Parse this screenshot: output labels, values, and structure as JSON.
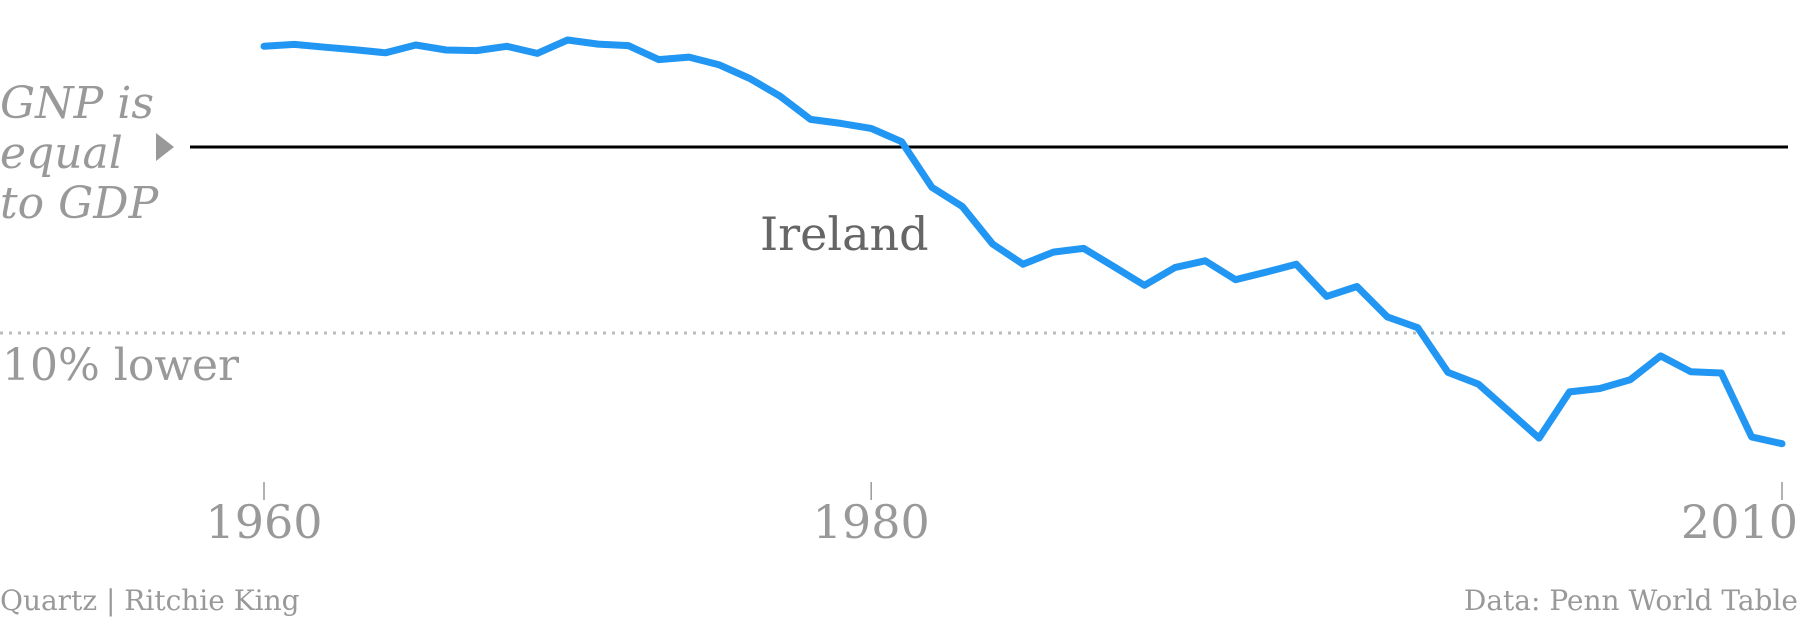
{
  "chart_data": {
    "type": "line",
    "title": "",
    "xlabel": "",
    "ylabel": "",
    "xlim": [
      1960,
      2010
    ],
    "ylim": [
      -0.14,
      0.04
    ],
    "x_ticks": [
      1960,
      1980,
      2010
    ],
    "x_tick_labels": [
      "1960",
      "1980",
      "2010"
    ],
    "series": [
      {
        "name": "Ireland",
        "color": "#2196f3",
        "x": [
          1960,
          1961,
          1962,
          1963,
          1964,
          1965,
          1966,
          1967,
          1968,
          1969,
          1970,
          1971,
          1972,
          1973,
          1974,
          1975,
          1976,
          1977,
          1978,
          1979,
          1980,
          1981,
          1982,
          1983,
          1984,
          1985,
          1986,
          1987,
          1988,
          1989,
          1990,
          1991,
          1992,
          1993,
          1994,
          1995,
          1996,
          1997,
          1998,
          1999,
          2000,
          2001,
          2002,
          2003,
          2004,
          2005,
          2006,
          2007,
          2008,
          2009,
          2010
        ],
        "y": [
          0.0325,
          0.0331,
          0.0322,
          0.0314,
          0.0304,
          0.0329,
          0.0313,
          0.0311,
          0.0325,
          0.0302,
          0.0345,
          0.0332,
          0.0327,
          0.0282,
          0.029,
          0.0265,
          0.0221,
          0.0164,
          0.0089,
          0.0076,
          0.006,
          0.0017,
          -0.013,
          -0.0192,
          -0.0313,
          -0.0378,
          -0.0339,
          -0.0327,
          -0.0386,
          -0.0446,
          -0.0389,
          -0.0367,
          -0.0428,
          -0.0404,
          -0.0378,
          -0.0482,
          -0.045,
          -0.0548,
          -0.0583,
          -0.0727,
          -0.0765,
          -0.0852,
          -0.0939,
          -0.079,
          -0.0779,
          -0.0751,
          -0.0674,
          -0.0725,
          -0.0729,
          -0.0935,
          -0.0957
        ]
      }
    ],
    "reference_lines": [
      {
        "y": 0,
        "label": "GNP is equal to GDP",
        "style": "solid",
        "color": "#000000"
      },
      {
        "y": -0.06,
        "label": "10% lower",
        "style": "dotted",
        "color": "#bbbbbb"
      }
    ]
  },
  "labels": {
    "ref_line1": "GNP is",
    "ref_line2": "equal",
    "ref_line3": "to GDP",
    "lower": "10% lower",
    "country": "Ireland"
  },
  "footer": {
    "left": "Quartz | Ritchie King",
    "right": "Data: Penn World Table"
  }
}
